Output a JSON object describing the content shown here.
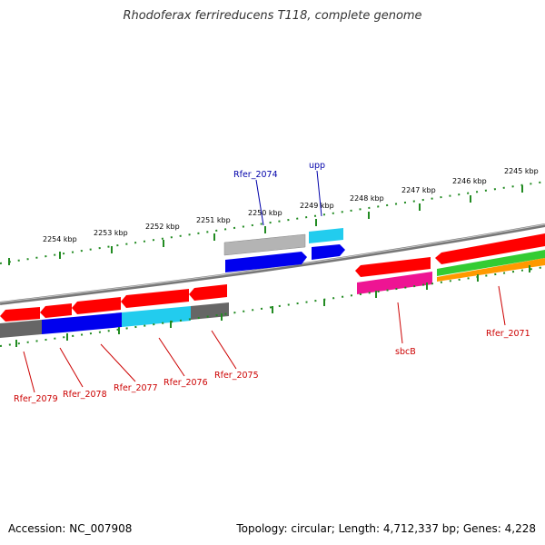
{
  "title": "Rhodoferax ferrireducens T118, complete genome",
  "accession": "Accession: NC_007908",
  "summary": "Topology: circular; Length: 4,712,337 bp; Genes: 4,228",
  "kbp_ticks": [
    "2254 kbp",
    "2253 kbp",
    "2252 kbp",
    "2251 kbp",
    "2250 kbp",
    "2249 kbp",
    "2248 kbp",
    "2247 kbp",
    "2246 kbp",
    "2245 kbp"
  ],
  "gene_labels": [
    "Rfer_2074",
    "upp",
    "sbcB",
    "Rfer_2071",
    "Rfer_2079",
    "Rfer_2078",
    "Rfer_2077",
    "Rfer_2076",
    "Rfer_2075"
  ],
  "colors": {
    "cds": "#ff0000",
    "backbone": "#888888",
    "gc_skew_tick": "#228b22",
    "top_label": "#0000aa",
    "bottom_label": "#cc0000",
    "blue": "#0000ee",
    "light_blue": "#22ccee",
    "grey": "#aaaaaa",
    "pink": "#ee1493",
    "green": "#33cc33",
    "orange": "#ff9900"
  }
}
